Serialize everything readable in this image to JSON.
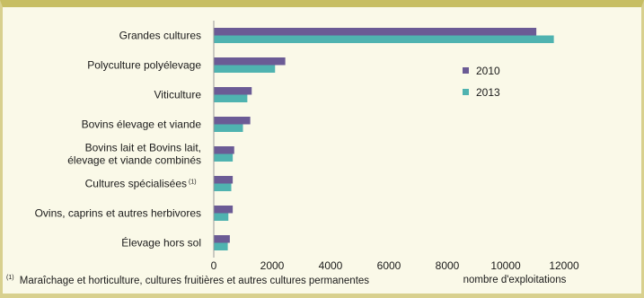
{
  "chart_data": {
    "type": "bar",
    "orientation": "horizontal",
    "categories": [
      [
        "Grandes cultures"
      ],
      [
        "Polyculture polyélevage"
      ],
      [
        "Viticulture"
      ],
      [
        "Bovins élevage et viande"
      ],
      [
        "Bovins lait et Bovins lait,",
        "élevage et viande combinés"
      ],
      [
        "Cultures spécialisées"
      ],
      [
        "Ovins, caprins et autres herbivores"
      ],
      [
        "Élevage hors sol"
      ]
    ],
    "category_notes": [
      "",
      "",
      "",
      "",
      "",
      "(1)",
      "",
      ""
    ],
    "series": [
      {
        "name": "2010",
        "color": "#6b5b95",
        "values": [
          11050,
          2450,
          1300,
          1250,
          700,
          650,
          650,
          550
        ]
      },
      {
        "name": "2013",
        "color": "#4fb3b0",
        "values": [
          11650,
          2100,
          1150,
          1000,
          650,
          600,
          500,
          480
        ]
      }
    ],
    "xlim": [
      0,
      12000
    ],
    "xticks": [
      "0",
      "2000",
      "4000",
      "6000",
      "8000",
      "10000",
      "12000"
    ],
    "xtick_values": [
      0,
      2000,
      4000,
      6000,
      8000,
      10000,
      12000
    ],
    "xlabel": "nombre d'exploitations",
    "legend_position": "right",
    "grid": false,
    "footnote_marker": "(1)",
    "footnote_text": "Maraîchage et horticulture, cultures fruitières et autres cultures permanentes"
  }
}
